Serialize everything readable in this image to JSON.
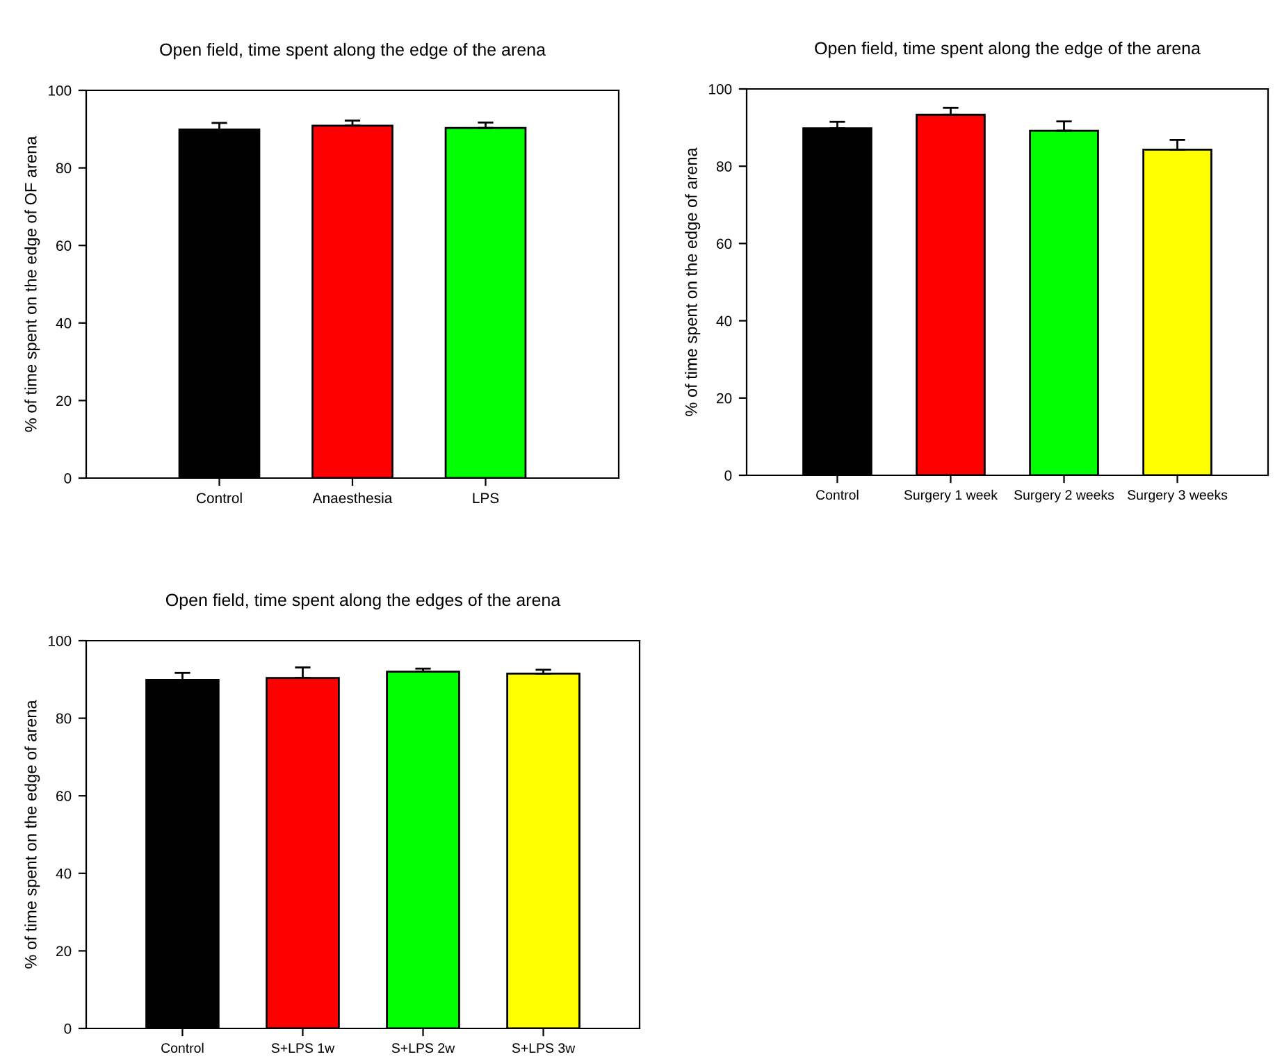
{
  "chart_data": [
    {
      "type": "bar",
      "title": "Open field, time spent along the edge of the arena",
      "ylabel": "% of time spent on the edge of OF arena",
      "categories": [
        "Control",
        "Anaesthesia",
        "LPS"
      ],
      "values": [
        89.9,
        90.9,
        90.3
      ],
      "colors": [
        "#000000",
        "#ff0000",
        "#00ff00"
      ],
      "errors": [
        [
          89.9,
          91.6
        ],
        [
          90.9,
          92.2
        ],
        [
          90.3,
          91.7
        ]
      ],
      "ylim": [
        0,
        100
      ],
      "yticks": [
        0,
        20,
        40,
        60,
        80,
        100
      ],
      "grid": false,
      "legend": false
    },
    {
      "type": "bar",
      "title": "Open field, time spent along the edge of the arena",
      "ylabel": "% of time spent on the edge of arena",
      "categories": [
        "Control",
        "Surgery 1 week",
        "Surgery 2 weeks",
        "Surgery 3 weeks"
      ],
      "values": [
        89.8,
        93.3,
        89.2,
        84.3
      ],
      "colors": [
        "#000000",
        "#ff0000",
        "#00ff00",
        "#ffff00"
      ],
      "errors": [
        [
          89.8,
          91.5
        ],
        [
          93.3,
          95.1
        ],
        [
          89.2,
          91.6
        ],
        [
          84.3,
          86.8
        ]
      ],
      "ylim": [
        0,
        100
      ],
      "yticks": [
        0,
        20,
        40,
        60,
        80,
        100
      ],
      "grid": false,
      "legend": false
    },
    {
      "type": "bar",
      "title": "Open field, time spent along the edges of the arena",
      "ylabel": "% of time spent on the edge of arena",
      "categories": [
        "Control",
        "S+LPS 1w",
        "S+LPS 2w",
        "S+LPS 3w"
      ],
      "values": [
        89.9,
        90.4,
        92.0,
        91.5
      ],
      "colors": [
        "#000000",
        "#ff0000",
        "#00ff00",
        "#ffff00"
      ],
      "errors": [
        [
          89.9,
          91.7
        ],
        [
          90.4,
          93.1
        ],
        [
          92.0,
          92.8
        ],
        [
          91.5,
          92.5
        ]
      ],
      "ylim": [
        0,
        100
      ],
      "yticks": [
        0,
        20,
        40,
        60,
        80,
        100
      ],
      "grid": false,
      "legend": false
    }
  ]
}
